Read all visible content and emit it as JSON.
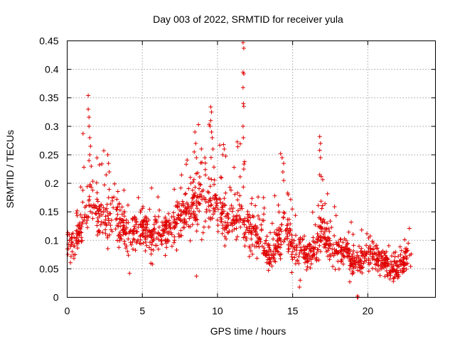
{
  "chart_data": {
    "type": "scatter",
    "title": "Day 003 of 2022, SRMTID for receiver yula",
    "xlabel": "GPS time / hours",
    "ylabel": "SRMTID / TECUs",
    "xlim": [
      0,
      24.5
    ],
    "ylim": [
      0,
      0.45
    ],
    "x_ticks": [
      0,
      5,
      10,
      15,
      20
    ],
    "x_tick_labels": [
      "0",
      "5",
      "10",
      "15",
      "20"
    ],
    "y_ticks": [
      0,
      0.05,
      0.1,
      0.15,
      0.2,
      0.25,
      0.3,
      0.35,
      0.4,
      0.45
    ],
    "y_tick_labels": [
      "0",
      "0.05",
      "0.1",
      "0.15",
      "0.2",
      "0.25",
      "0.3",
      "0.35",
      "0.4",
      "0.45"
    ],
    "grid": true,
    "marker": "+",
    "series": [
      {
        "name": "SRMTID",
        "color": "#e00000",
        "envelope": {
          "x": [
            0,
            0.5,
            1,
            1.5,
            2,
            2.5,
            3,
            3.5,
            4,
            4.5,
            5,
            5.5,
            6,
            6.5,
            7,
            7.5,
            8,
            8.5,
            9,
            9.5,
            10,
            10.5,
            11,
            11.5,
            12,
            12.5,
            13,
            13.5,
            14,
            14.5,
            15,
            15.5,
            16,
            16.5,
            17,
            17.5,
            18,
            18.5,
            19,
            19.5,
            20,
            20.5,
            21,
            21.5,
            22,
            22.5,
            22.9
          ],
          "center": [
            0.1,
            0.09,
            0.13,
            0.17,
            0.15,
            0.13,
            0.15,
            0.13,
            0.11,
            0.12,
            0.12,
            0.11,
            0.11,
            0.12,
            0.12,
            0.14,
            0.15,
            0.16,
            0.17,
            0.17,
            0.15,
            0.13,
            0.14,
            0.15,
            0.12,
            0.11,
            0.1,
            0.07,
            0.1,
            0.12,
            0.09,
            0.08,
            0.07,
            0.09,
            0.12,
            0.09,
            0.08,
            0.08,
            0.06,
            0.06,
            0.08,
            0.07,
            0.06,
            0.05,
            0.05,
            0.07,
            0.08
          ],
          "spread": [
            0.025,
            0.03,
            0.04,
            0.045,
            0.04,
            0.035,
            0.035,
            0.035,
            0.03,
            0.03,
            0.035,
            0.035,
            0.035,
            0.035,
            0.035,
            0.035,
            0.04,
            0.045,
            0.05,
            0.05,
            0.045,
            0.04,
            0.04,
            0.045,
            0.04,
            0.035,
            0.035,
            0.025,
            0.035,
            0.04,
            0.03,
            0.03,
            0.025,
            0.03,
            0.04,
            0.03,
            0.025,
            0.025,
            0.02,
            0.02,
            0.025,
            0.02,
            0.02,
            0.02,
            0.02,
            0.025,
            0.025
          ]
        },
        "highlights": [
          {
            "x": 1.4,
            "y": 0.354
          },
          {
            "x": 1.4,
            "y": 0.33
          },
          {
            "x": 1.45,
            "y": 0.316
          },
          {
            "x": 1.45,
            "y": 0.3
          },
          {
            "x": 1.5,
            "y": 0.28
          },
          {
            "x": 1.55,
            "y": 0.265
          },
          {
            "x": 1.5,
            "y": 0.25
          },
          {
            "x": 1.45,
            "y": 0.24
          },
          {
            "x": 1.6,
            "y": 0.23
          },
          {
            "x": 2.7,
            "y": 0.25
          },
          {
            "x": 2.75,
            "y": 0.235
          },
          {
            "x": 2.8,
            "y": 0.22
          },
          {
            "x": 8.5,
            "y": 0.29
          },
          {
            "x": 8.55,
            "y": 0.27
          },
          {
            "x": 8.45,
            "y": 0.255
          },
          {
            "x": 8.6,
            "y": 0.245
          },
          {
            "x": 9.55,
            "y": 0.334
          },
          {
            "x": 9.6,
            "y": 0.325
          },
          {
            "x": 9.55,
            "y": 0.31
          },
          {
            "x": 9.5,
            "y": 0.3
          },
          {
            "x": 9.6,
            "y": 0.29
          },
          {
            "x": 9.65,
            "y": 0.28
          },
          {
            "x": 9.7,
            "y": 0.26
          },
          {
            "x": 10.4,
            "y": 0.268
          },
          {
            "x": 10.45,
            "y": 0.26
          },
          {
            "x": 10.35,
            "y": 0.25
          },
          {
            "x": 11.7,
            "y": 0.447
          },
          {
            "x": 11.75,
            "y": 0.437
          },
          {
            "x": 11.7,
            "y": 0.395
          },
          {
            "x": 11.75,
            "y": 0.392
          },
          {
            "x": 11.7,
            "y": 0.368
          },
          {
            "x": 11.72,
            "y": 0.34
          },
          {
            "x": 11.75,
            "y": 0.335
          },
          {
            "x": 11.7,
            "y": 0.3
          },
          {
            "x": 11.72,
            "y": 0.28
          },
          {
            "x": 11.8,
            "y": 0.238
          },
          {
            "x": 11.75,
            "y": 0.225
          },
          {
            "x": 14.2,
            "y": 0.252
          },
          {
            "x": 14.3,
            "y": 0.245
          },
          {
            "x": 14.4,
            "y": 0.235
          },
          {
            "x": 14.35,
            "y": 0.22
          },
          {
            "x": 14.4,
            "y": 0.205
          },
          {
            "x": 16.8,
            "y": 0.282
          },
          {
            "x": 16.85,
            "y": 0.27
          },
          {
            "x": 16.8,
            "y": 0.258
          },
          {
            "x": 16.85,
            "y": 0.245
          },
          {
            "x": 16.8,
            "y": 0.215
          },
          {
            "x": 16.9,
            "y": 0.212
          },
          {
            "x": 19.3,
            "y": 0.0
          },
          {
            "x": 19.32,
            "y": 0.002
          },
          {
            "x": 19.35,
            "y": 0.0
          },
          {
            "x": 15.45,
            "y": 0.018
          },
          {
            "x": 15.5,
            "y": 0.03
          },
          {
            "x": 4.15,
            "y": 0.042
          },
          {
            "x": 8.6,
            "y": 0.037
          },
          {
            "x": 18.8,
            "y": 0.027
          },
          {
            "x": 21.7,
            "y": 0.028
          }
        ]
      }
    ]
  }
}
